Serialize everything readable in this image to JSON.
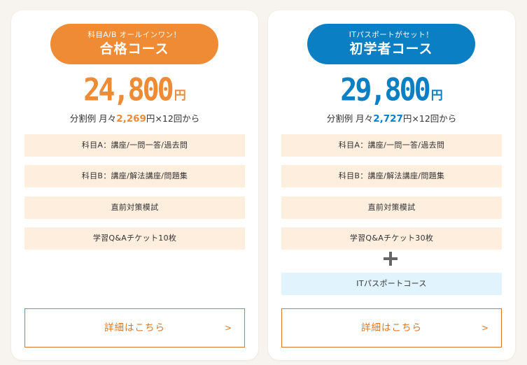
{
  "cards": [
    {
      "subtitle": "科目A/B オールインワン！",
      "title": "合格コース",
      "price": "24,800",
      "price_unit": "円",
      "installment_prefix": "分割例 月々",
      "installment_amount": "2,269",
      "installment_suffix": "円×12回から",
      "features": [
        "科目A：講座/一問一答/過去問",
        "科目B：講座/解法講座/問題集",
        "直前対策模試",
        "学習Q&Aチケット10枚"
      ],
      "detail_label": "詳細はこちら",
      "detail_chevron": ">",
      "accent_color": "#ef8a35"
    },
    {
      "subtitle": "ITパスポートがセット！",
      "title": "初学者コース",
      "price": "29,800",
      "price_unit": "円",
      "installment_prefix": "分割例 月々",
      "installment_amount": "2,727",
      "installment_suffix": "円×12回から",
      "features": [
        "科目A：講座/一問一答/過去問",
        "科目B：講座/解法講座/問題集",
        "直前対策模試",
        "学習Q&Aチケット30枚"
      ],
      "extra_icon": "plus-icon",
      "extra_feature": "ITパスポートコース",
      "detail_label": "詳細はこちら",
      "detail_chevron": ">",
      "accent_color": "#0b7fc4"
    }
  ]
}
